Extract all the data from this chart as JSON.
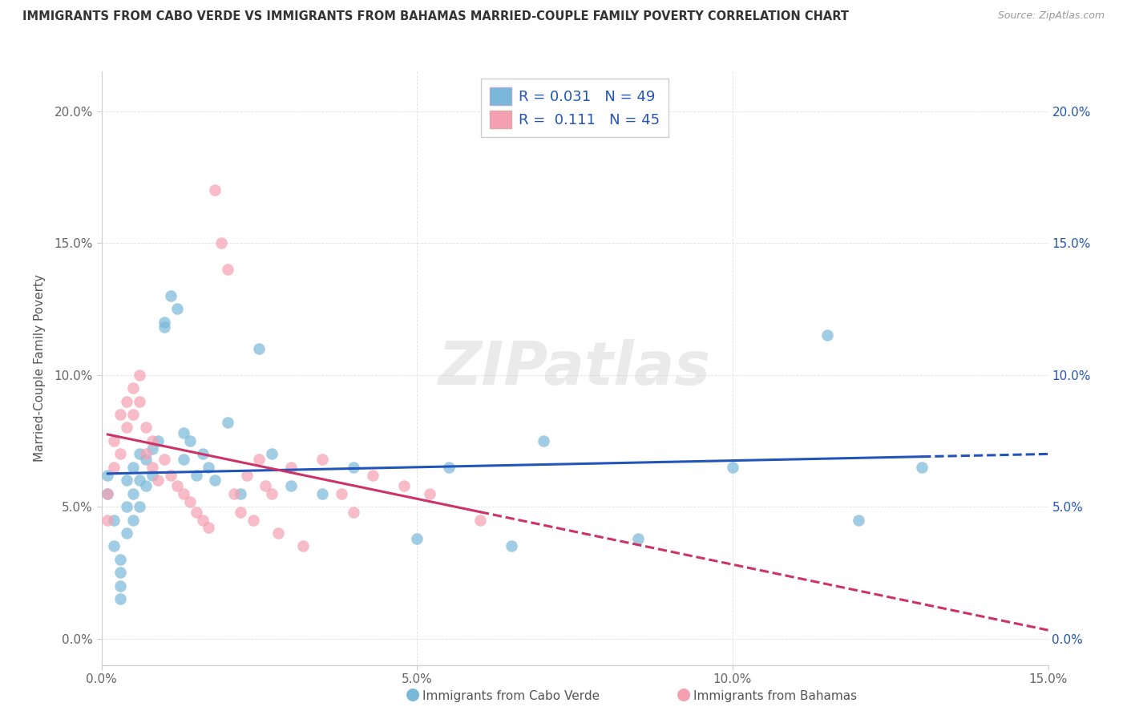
{
  "title": "IMMIGRANTS FROM CABO VERDE VS IMMIGRANTS FROM BAHAMAS MARRIED-COUPLE FAMILY POVERTY CORRELATION CHART",
  "source": "Source: ZipAtlas.com",
  "ylabel": "Married-Couple Family Poverty",
  "legend_label1": "Immigrants from Cabo Verde",
  "legend_label2": "Immigrants from Bahamas",
  "R1": 0.031,
  "N1": 49,
  "R2": 0.111,
  "N2": 45,
  "color1": "#7ab8d9",
  "color2": "#f4a0b0",
  "trendline_color1": "#2255bb",
  "trendline_color2": "#cc3366",
  "xlim": [
    0,
    0.15
  ],
  "ylim": [
    -0.01,
    0.215
  ],
  "xticks": [
    0.0,
    0.05,
    0.1,
    0.15
  ],
  "yticks": [
    0.0,
    0.05,
    0.1,
    0.15,
    0.2
  ],
  "cabo_verde_x": [
    0.001,
    0.001,
    0.002,
    0.002,
    0.003,
    0.003,
    0.003,
    0.003,
    0.004,
    0.004,
    0.004,
    0.005,
    0.005,
    0.005,
    0.006,
    0.006,
    0.006,
    0.007,
    0.007,
    0.008,
    0.008,
    0.009,
    0.01,
    0.01,
    0.011,
    0.012,
    0.013,
    0.013,
    0.014,
    0.015,
    0.016,
    0.017,
    0.018,
    0.02,
    0.022,
    0.025,
    0.027,
    0.03,
    0.035,
    0.04,
    0.05,
    0.055,
    0.065,
    0.07,
    0.085,
    0.1,
    0.115,
    0.12,
    0.13
  ],
  "cabo_verde_y": [
    0.062,
    0.055,
    0.045,
    0.035,
    0.03,
    0.025,
    0.02,
    0.015,
    0.06,
    0.05,
    0.04,
    0.065,
    0.055,
    0.045,
    0.07,
    0.06,
    0.05,
    0.068,
    0.058,
    0.072,
    0.062,
    0.075,
    0.12,
    0.118,
    0.13,
    0.125,
    0.078,
    0.068,
    0.075,
    0.062,
    0.07,
    0.065,
    0.06,
    0.082,
    0.055,
    0.11,
    0.07,
    0.058,
    0.055,
    0.065,
    0.038,
    0.065,
    0.035,
    0.075,
    0.038,
    0.065,
    0.115,
    0.045,
    0.065
  ],
  "bahamas_x": [
    0.001,
    0.001,
    0.002,
    0.002,
    0.003,
    0.003,
    0.004,
    0.004,
    0.005,
    0.005,
    0.006,
    0.006,
    0.007,
    0.007,
    0.008,
    0.008,
    0.009,
    0.01,
    0.011,
    0.012,
    0.013,
    0.014,
    0.015,
    0.016,
    0.017,
    0.018,
    0.019,
    0.02,
    0.021,
    0.022,
    0.023,
    0.024,
    0.025,
    0.026,
    0.027,
    0.028,
    0.03,
    0.032,
    0.035,
    0.038,
    0.04,
    0.043,
    0.048,
    0.052,
    0.06
  ],
  "bahamas_y": [
    0.055,
    0.045,
    0.065,
    0.075,
    0.085,
    0.07,
    0.09,
    0.08,
    0.095,
    0.085,
    0.1,
    0.09,
    0.08,
    0.07,
    0.075,
    0.065,
    0.06,
    0.068,
    0.062,
    0.058,
    0.055,
    0.052,
    0.048,
    0.045,
    0.042,
    0.17,
    0.15,
    0.14,
    0.055,
    0.048,
    0.062,
    0.045,
    0.068,
    0.058,
    0.055,
    0.04,
    0.065,
    0.035,
    0.068,
    0.055,
    0.048,
    0.062,
    0.058,
    0.055,
    0.045
  ]
}
